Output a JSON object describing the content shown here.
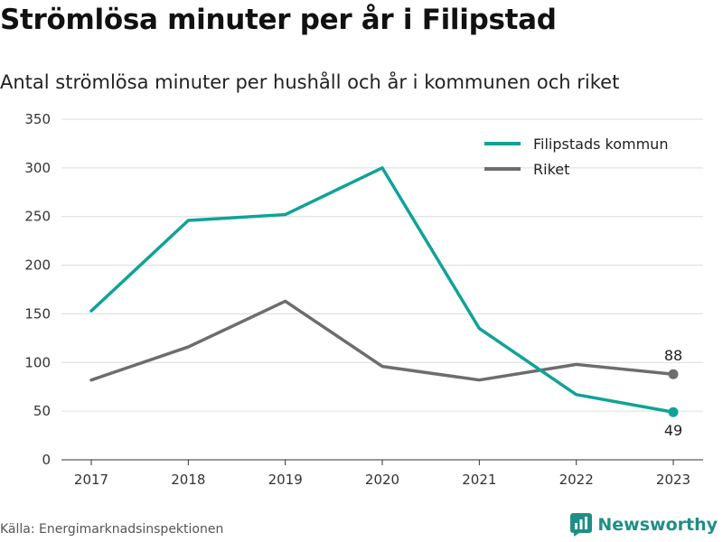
{
  "title": "Strömlösa minuter per år i Filipstad",
  "subtitle": "Antal strömlösa minuter per hushåll och år i kommunen och riket",
  "source": "Källa: Energimarknadsinspektionen",
  "brand": {
    "name": "Newsworthy",
    "icon": "newsworthy-logo-icon",
    "color": "#1f8f86"
  },
  "chart_data": {
    "type": "line",
    "x": [
      "2017",
      "2018",
      "2019",
      "2020",
      "2021",
      "2022",
      "2023"
    ],
    "ylim": [
      0,
      350
    ],
    "yticks": [
      "0",
      "50",
      "100",
      "150",
      "200",
      "250",
      "300",
      "350"
    ],
    "grid": true,
    "legend_position": "top-right",
    "series": [
      {
        "name": "Filipstads kommun",
        "color": "#0fa396",
        "values": [
          153,
          246,
          252,
          300,
          135,
          67,
          49
        ],
        "end_label": "49"
      },
      {
        "name": "Riket",
        "color": "#6d6d6f",
        "values": [
          82,
          116,
          163,
          96,
          82,
          98,
          88
        ],
        "end_label": "88"
      }
    ]
  }
}
